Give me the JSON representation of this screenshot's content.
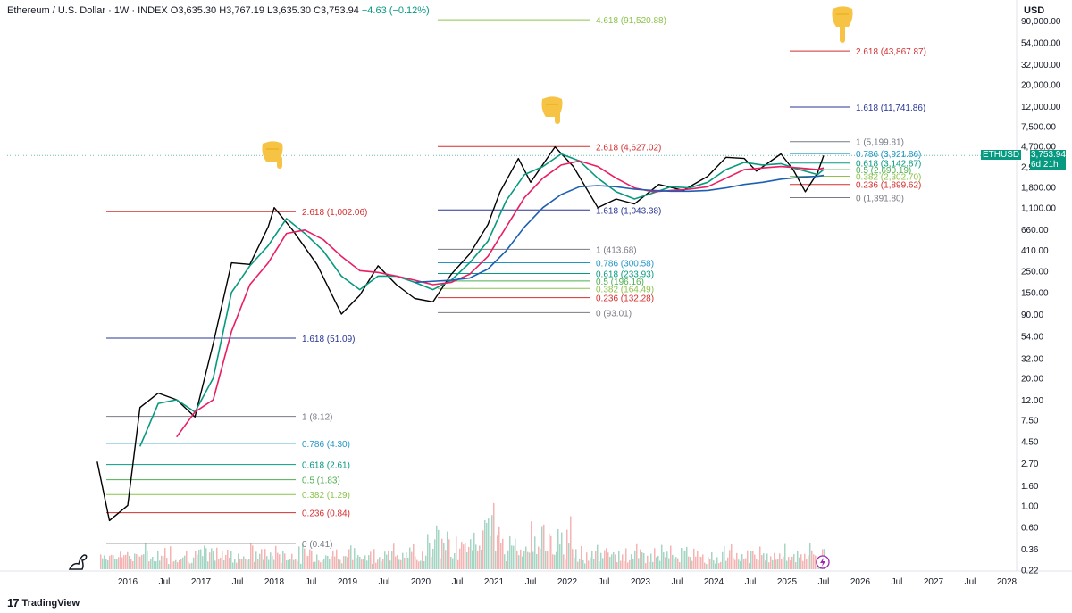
{
  "header": {
    "symbol": "Ethereum / U.S. Dollar · 1W · INDEX",
    "open": "O3,635.30",
    "high": "H3,767.19",
    "low": "L3,635.30",
    "close": "C3,753.94",
    "change": "−4.63 (−0.12%)"
  },
  "price_axis": {
    "currency": "USD",
    "ticks": [
      "90,000.00",
      "54,000.00",
      "32,000.00",
      "20,000.00",
      "12,000.00",
      "7,500.00",
      "4,700.00",
      "2,900.00",
      "1,800.00",
      "1,100.00",
      "660.00",
      "410.00",
      "250.00",
      "150.00",
      "90.00",
      "54.00",
      "32.00",
      "20.00",
      "12.00",
      "7.50",
      "4.50",
      "2.70",
      "1.60",
      "1.00",
      "0.60",
      "0.36",
      "0.22"
    ]
  },
  "time_axis": {
    "ticks": [
      "2016",
      "Jul",
      "2017",
      "Jul",
      "2018",
      "Jul",
      "2019",
      "Jul",
      "2020",
      "Jul",
      "2021",
      "Jul",
      "2022",
      "Jul",
      "2023",
      "Jul",
      "2024",
      "Jul",
      "2025",
      "Jul",
      "2026",
      "Jul",
      "2027",
      "Jul",
      "2028"
    ]
  },
  "price_tag": {
    "symbol": "ETHUSD",
    "price": "3,753.94",
    "countdown": "6d 21h"
  },
  "footer": {
    "brand": "TradingView"
  },
  "colors": {
    "price_line": "#000000",
    "ma_short": "#089981",
    "ma_mid": "#e91e63",
    "ma_long": "#1e5fb4",
    "volume_up": "#a5d6c3",
    "volume_down": "#f5b3b3",
    "fib_1": "#787b86",
    "fib_0786": "#2196c4",
    "fib_0618": "#089981",
    "fib_05": "#4caf50",
    "fib_0382": "#8bc34a",
    "fib_0236": "#d32f2f",
    "fib_0": "#787b86",
    "fib_1618": "#283593",
    "fib_2618": "#d32f2f",
    "fib_4618": "#8bc34a",
    "price_tag": "#089981"
  },
  "icons": [
    "pointing-down-hand-icon",
    "dinosaur-icon",
    "lightning-icon",
    "tradingview-logo-icon"
  ],
  "chart_data": {
    "type": "line",
    "scale": "log",
    "ylim": [
      0.22,
      90000
    ],
    "x_range": [
      "2015-08",
      "2028-04"
    ],
    "series": [
      {
        "x": [
          "2015-08",
          "2015-10",
          "2016-01",
          "2016-03",
          "2016-06",
          "2016-09",
          "2016-12",
          "2017-03",
          "2017-06",
          "2017-09",
          "2017-12",
          "2018-01",
          "2018-04",
          "2018-08",
          "2018-12",
          "2019-03",
          "2019-06",
          "2019-09",
          "2019-12",
          "2020-03",
          "2020-06",
          "2020-09",
          "2020-12",
          "2021-02",
          "2021-05",
          "2021-07",
          "2021-11",
          "2022-02",
          "2022-06",
          "2022-09",
          "2022-12",
          "2023-04",
          "2023-08",
          "2023-12",
          "2024-03",
          "2024-06",
          "2024-08",
          "2024-12",
          "2025-02",
          "2025-04",
          "2025-06",
          "2025-07"
        ],
        "values": [
          2.8,
          0.7,
          1.0,
          10,
          14,
          12,
          8,
          45,
          300,
          290,
          700,
          1100,
          650,
          290,
          90,
          140,
          280,
          180,
          130,
          120,
          230,
          370,
          740,
          1600,
          3500,
          2000,
          4600,
          2900,
          1100,
          1350,
          1200,
          1900,
          1650,
          2300,
          3600,
          3500,
          2600,
          3900,
          2700,
          1600,
          2500,
          3753.94
        ]
      },
      {
        "x": [
          "2016-03",
          "2016-06",
          "2016-09",
          "2016-12",
          "2017-03",
          "2017-06",
          "2017-09",
          "2017-12",
          "2018-03",
          "2018-06",
          "2018-09",
          "2018-12",
          "2019-03",
          "2019-06",
          "2019-09",
          "2019-12",
          "2020-03",
          "2020-06",
          "2020-09",
          "2020-12",
          "2021-03",
          "2021-06",
          "2021-09",
          "2021-12",
          "2022-03",
          "2022-06",
          "2022-09",
          "2022-12",
          "2023-03",
          "2023-06",
          "2023-09",
          "2023-12",
          "2024-03",
          "2024-06",
          "2024-09",
          "2024-12",
          "2025-03",
          "2025-06",
          "2025-07"
        ],
        "values": [
          4,
          11,
          12,
          9,
          20,
          150,
          280,
          450,
          850,
          600,
          400,
          220,
          160,
          220,
          220,
          190,
          160,
          200,
          300,
          500,
          1300,
          2400,
          2900,
          3900,
          3300,
          2200,
          1600,
          1350,
          1550,
          1800,
          1750,
          2000,
          2700,
          3200,
          3000,
          3100,
          2700,
          2400,
          2700
        ]
      },
      {
        "x": [
          "2016-09",
          "2016-12",
          "2017-03",
          "2017-06",
          "2017-09",
          "2017-12",
          "2018-03",
          "2018-06",
          "2018-09",
          "2018-12",
          "2019-03",
          "2019-06",
          "2019-09",
          "2019-12",
          "2020-03",
          "2020-06",
          "2020-09",
          "2020-12",
          "2021-03",
          "2021-06",
          "2021-09",
          "2021-12",
          "2022-03",
          "2022-06",
          "2022-09",
          "2022-12",
          "2023-03",
          "2023-06",
          "2023-09",
          "2023-12",
          "2024-03",
          "2024-06",
          "2024-09",
          "2024-12",
          "2025-03",
          "2025-06",
          "2025-07"
        ],
        "values": [
          5,
          9,
          12,
          60,
          180,
          300,
          600,
          650,
          520,
          350,
          250,
          240,
          220,
          200,
          180,
          190,
          230,
          350,
          700,
          1400,
          2200,
          3000,
          3300,
          2900,
          2200,
          1750,
          1600,
          1650,
          1700,
          1800,
          2200,
          2700,
          2800,
          2900,
          2800,
          2700,
          2800
        ]
      },
      {
        "x": [
          "2019-12",
          "2020-06",
          "2020-09",
          "2020-12",
          "2021-03",
          "2021-06",
          "2021-09",
          "2021-12",
          "2022-03",
          "2022-06",
          "2022-09",
          "2022-12",
          "2023-03",
          "2023-06",
          "2023-09",
          "2023-12",
          "2024-03",
          "2024-06",
          "2024-09",
          "2024-12",
          "2025-03",
          "2025-06",
          "2025-07"
        ],
        "values": [
          190,
          200,
          210,
          260,
          400,
          700,
          1100,
          1500,
          1800,
          1850,
          1800,
          1700,
          1650,
          1620,
          1620,
          1650,
          1750,
          1900,
          2000,
          2150,
          2250,
          2300,
          2350
        ]
      }
    ],
    "annotations": {
      "fib_2018": [
        {
          "label": "2.618 (1,002.06)",
          "value": 1002.06
        },
        {
          "label": "1.618 (51.09)",
          "value": 51.09
        },
        {
          "label": "1 (8.12)",
          "value": 8.12
        },
        {
          "label": "0.786 (4.30)",
          "value": 4.3
        },
        {
          "label": "0.618 (2.61)",
          "value": 2.61
        },
        {
          "label": "0.5 (1.83)",
          "value": 1.83
        },
        {
          "label": "0.382 (1.29)",
          "value": 1.29
        },
        {
          "label": "0.236 (0.84)",
          "value": 0.84
        },
        {
          "label": "0 (0.41)",
          "value": 0.41
        }
      ],
      "fib_2021": [
        {
          "label": "4.618 (91,520.88)",
          "value": 91520.88
        },
        {
          "label": "2.618 (4,627.02)",
          "value": 4627.02
        },
        {
          "label": "1.618 (1,043.38)",
          "value": 1043.38
        },
        {
          "label": "1 (413.68)",
          "value": 413.68
        },
        {
          "label": "0.786 (300.58)",
          "value": 300.58
        },
        {
          "label": "0.618 (233.93)",
          "value": 233.93
        },
        {
          "label": "0.5 (196.16)",
          "value": 196.16
        },
        {
          "label": "0.382 (164.49)",
          "value": 164.49
        },
        {
          "label": "0.236 (132.28)",
          "value": 132.28
        },
        {
          "label": "0 (93.01)",
          "value": 93.01
        }
      ],
      "fib_2025": [
        {
          "label": "2.618 (43,867.87)",
          "value": 43867.87
        },
        {
          "label": "1.618 (11,741.86)",
          "value": 11741.86
        },
        {
          "label": "1 (5,199.81)",
          "value": 5199.81
        },
        {
          "label": "0.786 (3,921.86)",
          "value": 3921.86
        },
        {
          "label": "0.618 (3,142.87)",
          "value": 3142.87
        },
        {
          "label": "0.5 (2,690.19)",
          "value": 2690.19
        },
        {
          "label": "0.382 (2,302.70)",
          "value": 2302.7
        },
        {
          "label": "0.236 (1,899.62)",
          "value": 1899.62
        },
        {
          "label": "0 (1,391.80)",
          "value": 1391.8
        }
      ]
    }
  }
}
